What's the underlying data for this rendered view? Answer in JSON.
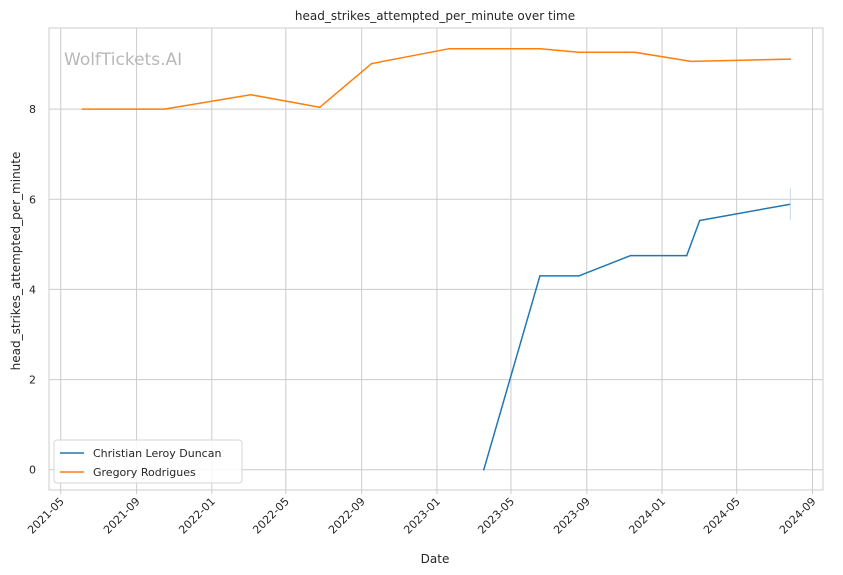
{
  "chart_data": {
    "type": "line",
    "title": "head_strikes_attempted_per_minute over time",
    "xlabel": "Date",
    "ylabel": "head_strikes_attempted_per_minute",
    "watermark": "WolfTickets.AI",
    "x_tick_labels": [
      "2021-05",
      "2021-09",
      "2022-01",
      "2022-05",
      "2022-09",
      "2023-01",
      "2023-05",
      "2023-09",
      "2024-01",
      "2024-05",
      "2024-09"
    ],
    "y_ticks": [
      0,
      2,
      4,
      6,
      8
    ],
    "ylim": [
      -0.45,
      9.8
    ],
    "xlim": [
      "2021-04-12",
      "2024-09-18"
    ],
    "grid": true,
    "legend_position": "lower-left",
    "series": [
      {
        "name": "Christian Leroy Duncan",
        "color": "#1f77b4",
        "points": [
          {
            "x": "2023-03-18",
            "y": 0.0
          },
          {
            "x": "2023-06-17",
            "y": 4.3
          },
          {
            "x": "2023-08-19",
            "y": 4.3
          },
          {
            "x": "2023-11-11",
            "y": 4.75
          },
          {
            "x": "2024-02-10",
            "y": 4.75
          },
          {
            "x": "2024-03-02",
            "y": 5.53
          },
          {
            "x": "2024-07-27",
            "y": 5.89
          }
        ]
      },
      {
        "name": "Gregory Rodrigues",
        "color": "#ff7f0e",
        "points": [
          {
            "x": "2021-06-05",
            "y": 8.0
          },
          {
            "x": "2021-10-16",
            "y": 8.0
          },
          {
            "x": "2022-03-05",
            "y": 8.32
          },
          {
            "x": "2022-06-25",
            "y": 8.04
          },
          {
            "x": "2022-09-17",
            "y": 9.01
          },
          {
            "x": "2023-01-21",
            "y": 9.34
          },
          {
            "x": "2023-06-17",
            "y": 9.34
          },
          {
            "x": "2023-08-19",
            "y": 9.26
          },
          {
            "x": "2023-11-18",
            "y": 9.26
          },
          {
            "x": "2024-02-17",
            "y": 9.06
          },
          {
            "x": "2024-07-27",
            "y": 9.11
          }
        ]
      }
    ]
  }
}
